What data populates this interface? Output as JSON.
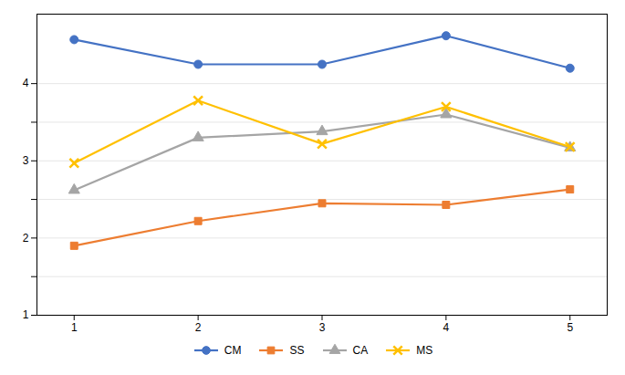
{
  "chart_data": {
    "type": "line",
    "x": [
      1,
      2,
      3,
      4,
      5
    ],
    "series": [
      {
        "name": "CM",
        "color": "#4472C4",
        "marker": "circle",
        "values": [
          4.57,
          4.25,
          4.25,
          4.62,
          4.2
        ]
      },
      {
        "name": "SS",
        "color": "#ED7D31",
        "marker": "square",
        "values": [
          1.9,
          2.22,
          2.45,
          2.43,
          2.63
        ]
      },
      {
        "name": "CA",
        "color": "#A5A5A5",
        "marker": "triangle",
        "values": [
          2.62,
          3.3,
          3.38,
          3.6,
          3.17
        ]
      },
      {
        "name": "MS",
        "color": "#FFC000",
        "marker": "x",
        "values": [
          2.97,
          3.78,
          3.22,
          3.7,
          3.18
        ]
      }
    ],
    "xlim": [
      0.7,
      5.3
    ],
    "ylim": [
      1.0,
      4.9
    ],
    "xticks": [
      1,
      2,
      3,
      4,
      5
    ],
    "yticks": [
      1,
      {
        "value": 1.5,
        "label": ""
      },
      2,
      {
        "value": 2.5,
        "label": ""
      },
      3,
      {
        "value": 3.5,
        "label": ""
      },
      4
    ],
    "grid": true,
    "legend": "bottom"
  }
}
